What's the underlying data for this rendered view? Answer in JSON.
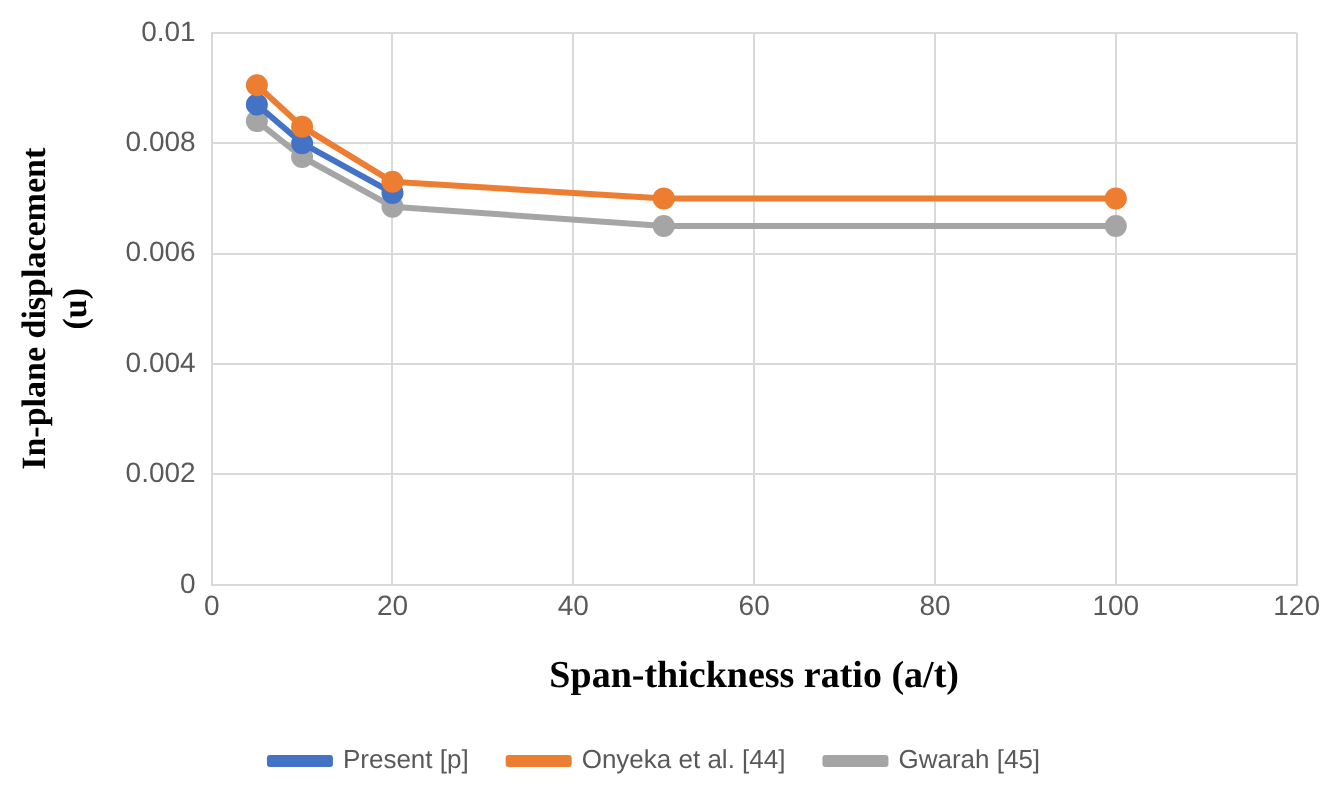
{
  "chart_data": {
    "type": "line",
    "xlabel": "Span-thickness ratio (a/t)",
    "ylabel": "In-plane displacement (u)",
    "x": [
      5,
      10,
      20,
      50,
      100
    ],
    "series": [
      {
        "name": "Present [p]",
        "color": "#4472c4",
        "values": [
          0.0087,
          0.008,
          0.0071,
          null,
          null
        ]
      },
      {
        "name": "Onyeka et al. [44]",
        "color": "#ed7d31",
        "values": [
          0.00905,
          0.0083,
          0.0073,
          0.007,
          0.007
        ]
      },
      {
        "name": "Gwarah [45]",
        "color": "#a5a5a5",
        "values": [
          0.0084,
          0.00775,
          0.00685,
          0.0065,
          0.0065
        ]
      }
    ],
    "xlim": [
      0,
      120
    ],
    "xticks": [
      0,
      20,
      40,
      60,
      80,
      100,
      120
    ],
    "ylim": [
      0,
      0.01
    ],
    "yticks": [
      0,
      0.002,
      0.004,
      0.006,
      0.008,
      0.01
    ],
    "grid": true,
    "legend": "bottom",
    "marker": "circle",
    "line_style": "solid"
  }
}
